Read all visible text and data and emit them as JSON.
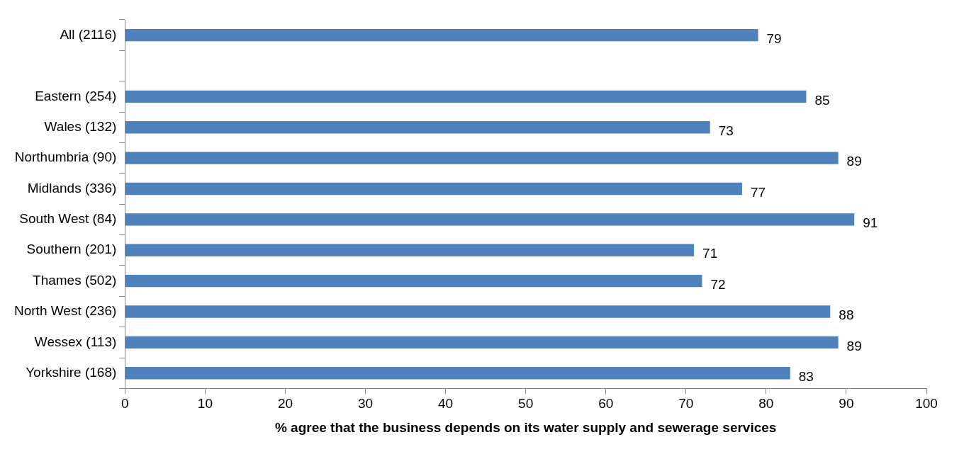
{
  "chart_data": {
    "type": "bar",
    "orientation": "horizontal",
    "xlabel": "% agree that the business depends on its water supply and sewerage services",
    "categories": [
      "All (2116)",
      null,
      "Eastern (254)",
      "Wales (132)",
      "Northumbria (90)",
      "Midlands (336)",
      "South West (84)",
      "Southern (201)",
      "Thames (502)",
      "North West (236)",
      "Wessex (113)",
      "Yorkshire (168)"
    ],
    "values": [
      79,
      null,
      85,
      73,
      89,
      77,
      91,
      71,
      72,
      88,
      89,
      83
    ],
    "color": "#4f81bd",
    "xlim": [
      0,
      100
    ],
    "xticks": [
      0,
      10,
      20,
      30,
      40,
      50,
      60,
      70,
      80,
      90,
      100
    ],
    "data_labels": true,
    "grid": false,
    "legend": false
  }
}
